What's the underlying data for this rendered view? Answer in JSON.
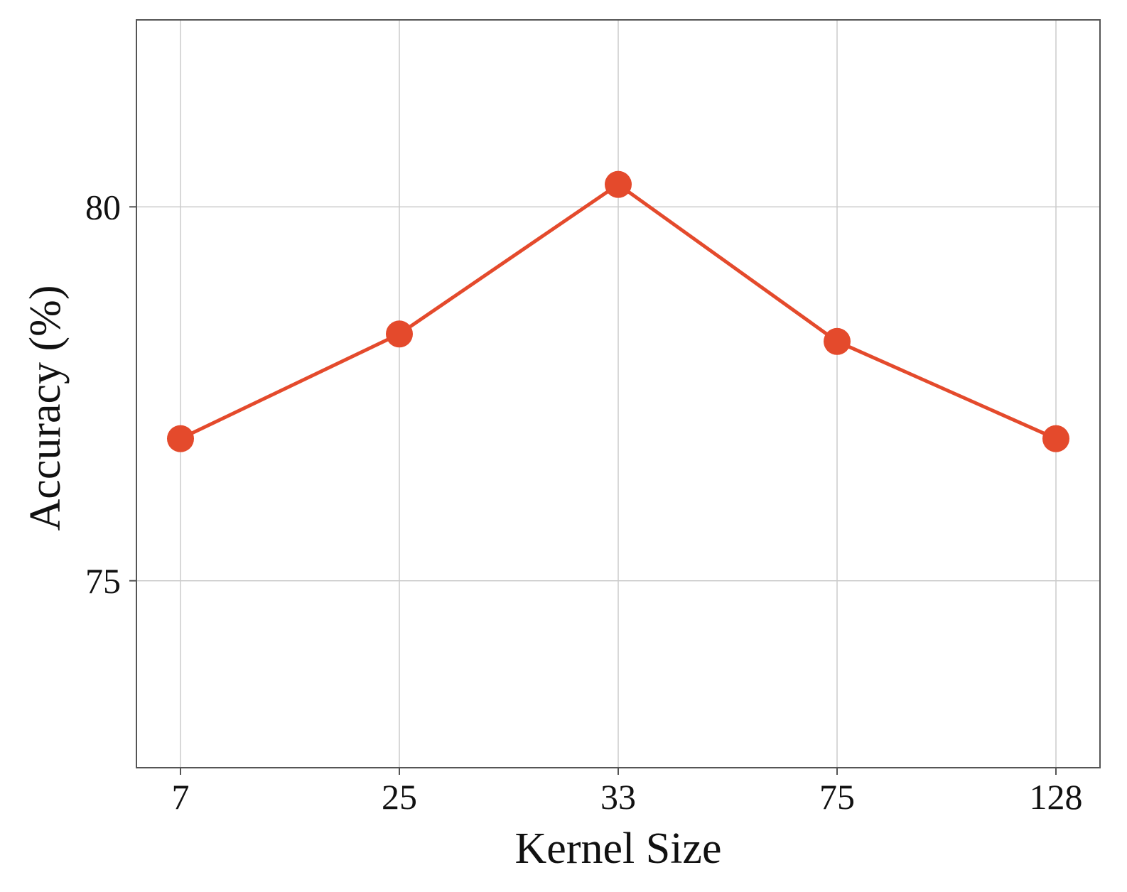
{
  "chart_data": {
    "type": "line",
    "title": "",
    "xlabel": "Kernel Size",
    "ylabel": "Accuracy (%)",
    "categories": [
      "7",
      "25",
      "33",
      "75",
      "128"
    ],
    "series": [
      {
        "values": [
          76.9,
          78.3,
          80.3,
          78.2,
          76.9
        ]
      }
    ],
    "y_ticks": [
      75,
      80
    ],
    "y_tick_labels": [
      "75",
      "80"
    ],
    "ylim": [
      72.5,
      82.5
    ],
    "grid": true,
    "legend": "none",
    "colors": {
      "line": "#e44a2c",
      "marker": "#e44a2c",
      "grid": "#cccccc",
      "axis": "#555555"
    }
  }
}
